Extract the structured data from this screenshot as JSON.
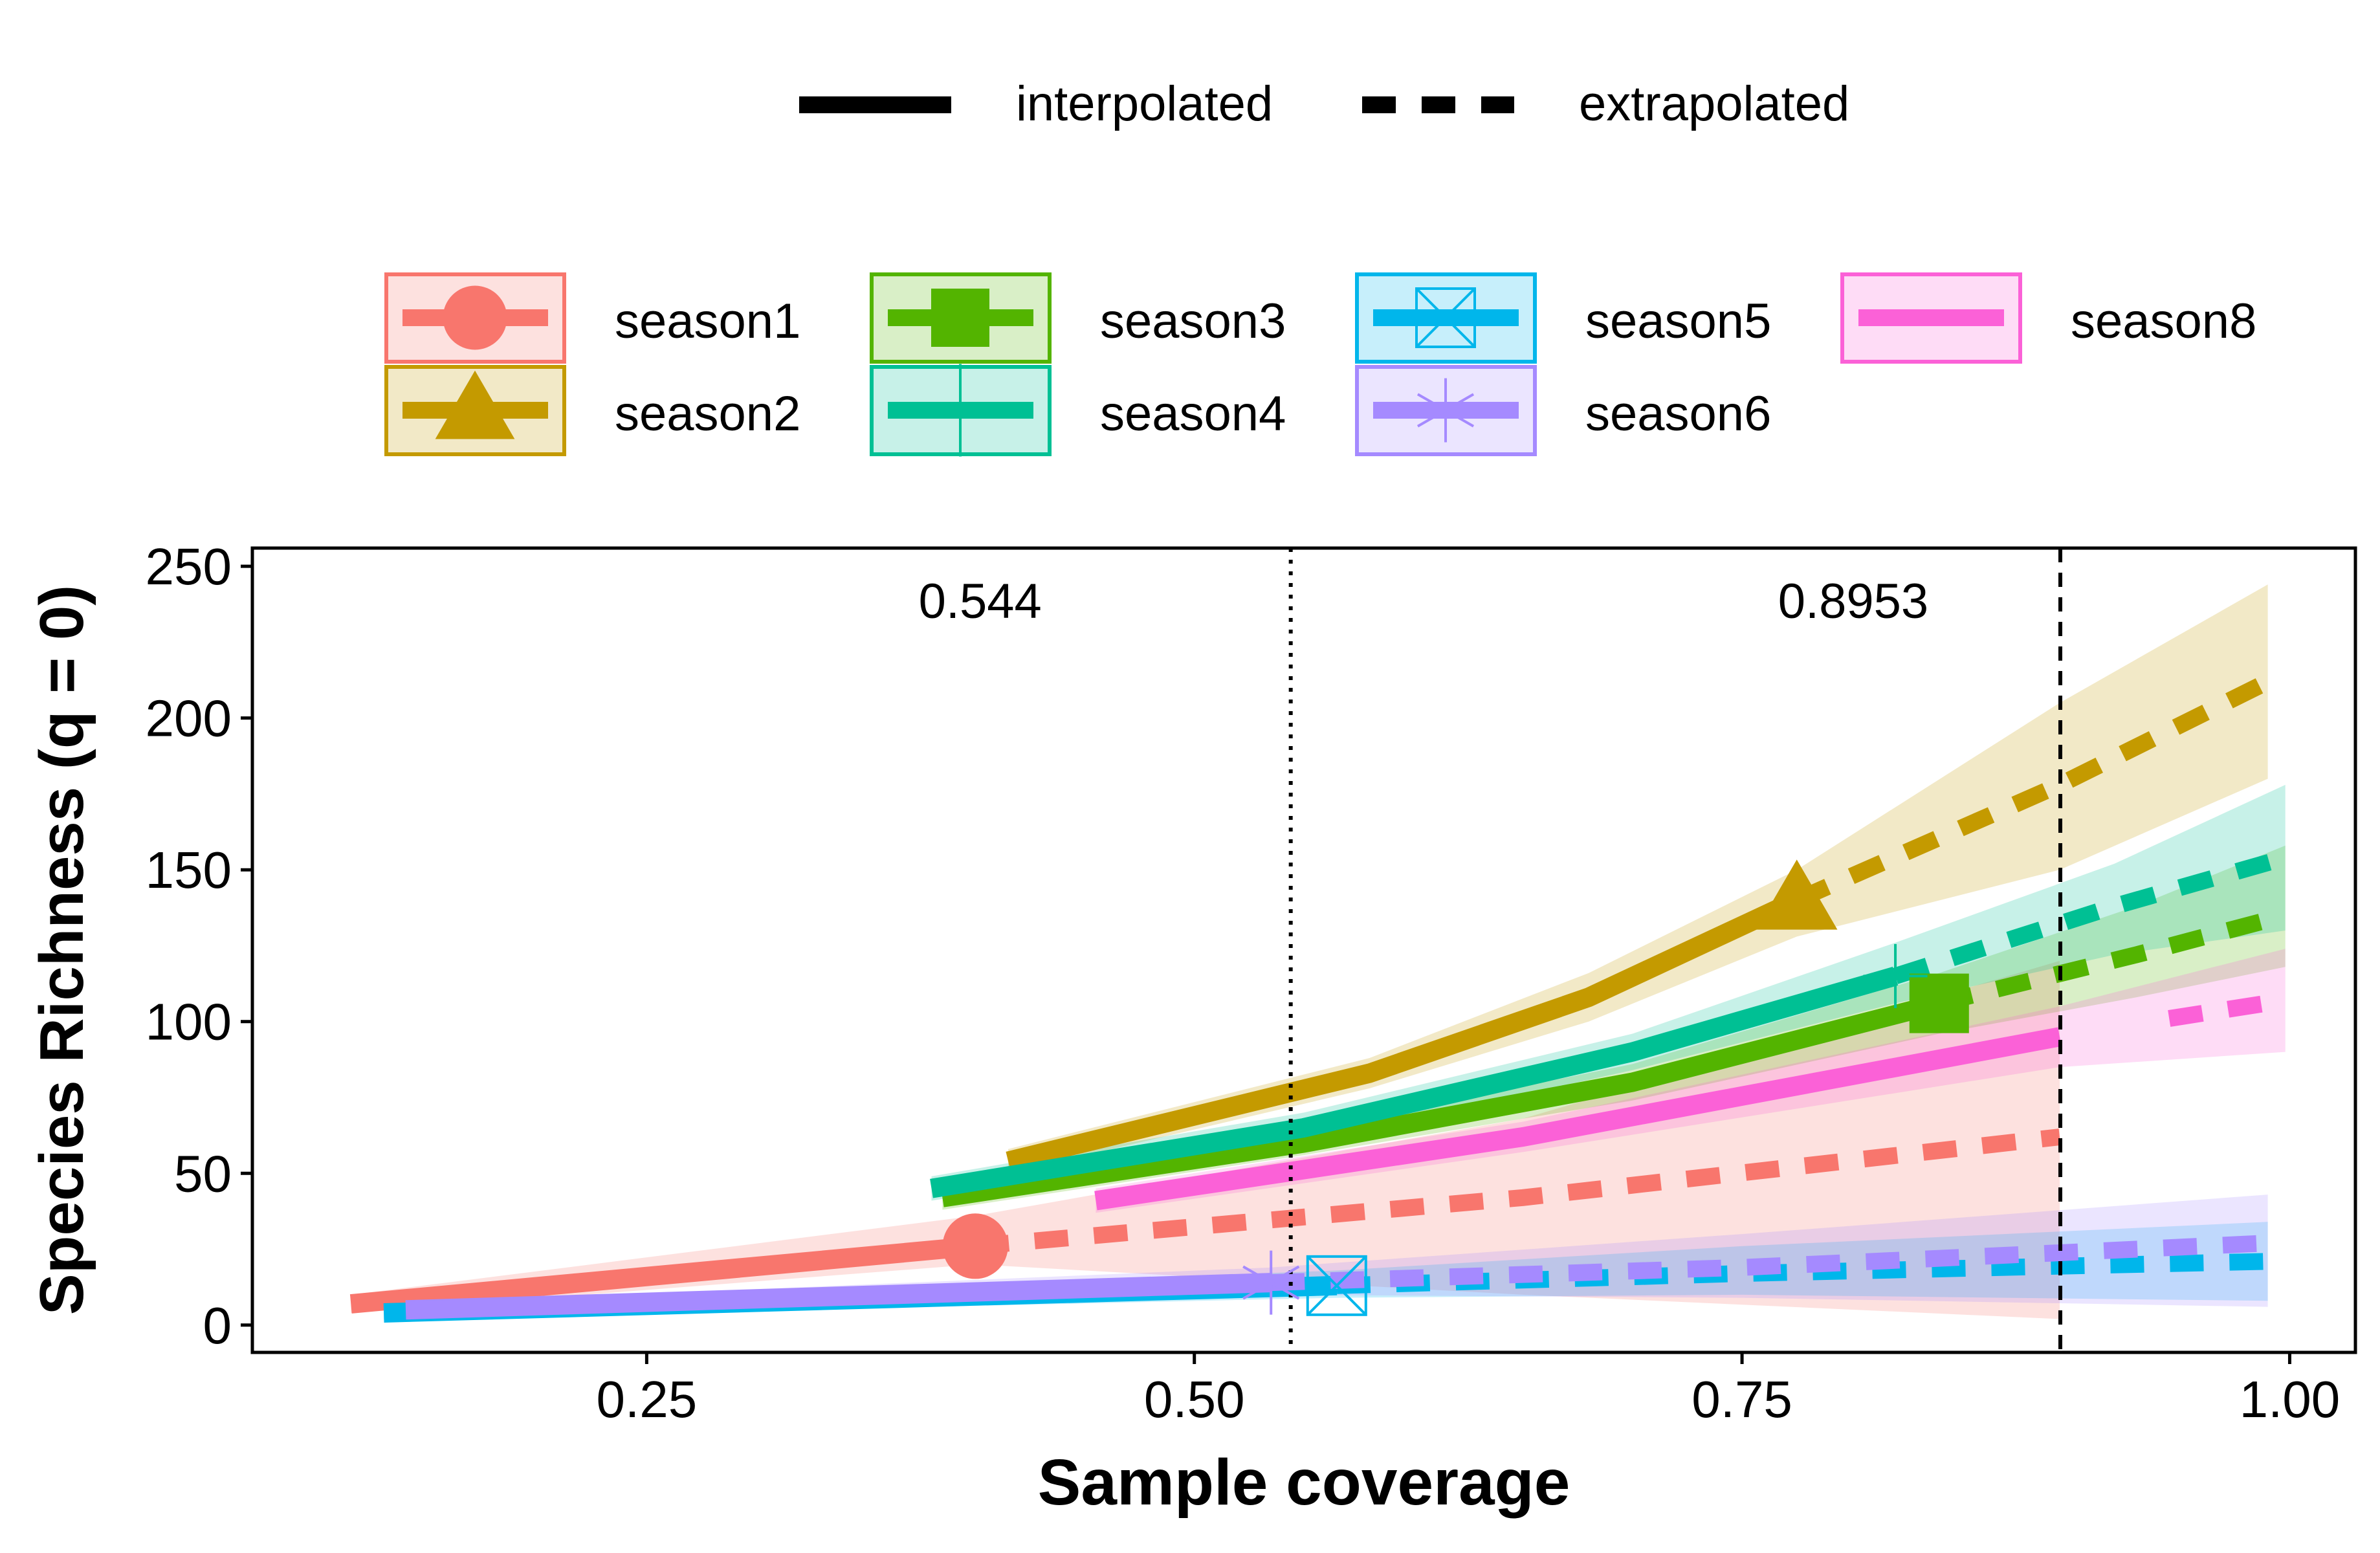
{
  "chart_data": {
    "type": "line",
    "xlabel": "Sample coverage",
    "ylabel": "Species Richness (q = 0)",
    "xlim": [
      0.07,
      1.03
    ],
    "ylim": [
      -9,
      256
    ],
    "x_ticks": [
      0.25,
      0.5,
      0.75,
      1.0
    ],
    "x_tick_labels": [
      "0.25",
      "0.50",
      "0.75",
      "1.00"
    ],
    "y_ticks": [
      0,
      50,
      100,
      150,
      200,
      250
    ],
    "y_tick_labels": [
      "0",
      "50",
      "100",
      "150",
      "200",
      "250"
    ],
    "grid": false,
    "legend_position": "top",
    "line_type_legend": [
      {
        "label": "interpolated",
        "dash": "solid"
      },
      {
        "label": "extrapolated",
        "dash": "dashed"
      }
    ],
    "reference_lines": [
      {
        "x": 0.544,
        "label": "0.544",
        "style": "dotted"
      },
      {
        "x": 0.8953,
        "label": "0.8953",
        "style": "dashed"
      }
    ],
    "series": [
      {
        "name": "season1",
        "color": "#F8766D",
        "marker": "circle",
        "interpolated": [
          [
            0.115,
            7
          ],
          [
            0.4,
            26
          ]
        ],
        "extrapolated": [
          [
            0.4,
            26
          ],
          [
            0.65,
            42
          ],
          [
            0.895,
            62
          ]
        ],
        "observed": [
          0.4,
          26
        ],
        "ci_lower": [
          [
            0.115,
            4
          ],
          [
            0.4,
            20
          ],
          [
            0.65,
            10
          ],
          [
            0.895,
            2
          ]
        ],
        "ci_upper": [
          [
            0.115,
            10
          ],
          [
            0.4,
            36
          ],
          [
            0.65,
            68
          ],
          [
            0.895,
            120
          ]
        ]
      },
      {
        "name": "season2",
        "color": "#C49A00",
        "marker": "triangle",
        "interpolated": [
          [
            0.415,
            54
          ],
          [
            0.58,
            83
          ],
          [
            0.68,
            108
          ],
          [
            0.775,
            140
          ]
        ],
        "extrapolated": [
          [
            0.775,
            140
          ],
          [
            0.895,
            178
          ],
          [
            0.99,
            212
          ]
        ],
        "observed": [
          0.775,
          140
        ],
        "ci_lower": [
          [
            0.415,
            50
          ],
          [
            0.58,
            78
          ],
          [
            0.68,
            100
          ],
          [
            0.775,
            128
          ],
          [
            0.895,
            150
          ],
          [
            0.99,
            180
          ]
        ],
        "ci_upper": [
          [
            0.415,
            58
          ],
          [
            0.58,
            88
          ],
          [
            0.68,
            116
          ],
          [
            0.775,
            150
          ],
          [
            0.895,
            205
          ],
          [
            0.99,
            244
          ]
        ]
      },
      {
        "name": "season3",
        "color": "#53B400",
        "marker": "square",
        "interpolated": [
          [
            0.385,
            42
          ],
          [
            0.55,
            60
          ],
          [
            0.7,
            80
          ],
          [
            0.84,
            106
          ]
        ],
        "extrapolated": [
          [
            0.84,
            106
          ],
          [
            0.93,
            122
          ],
          [
            0.998,
            135
          ]
        ],
        "observed": [
          0.84,
          106
        ],
        "ci_lower": [
          [
            0.385,
            38
          ],
          [
            0.55,
            56
          ],
          [
            0.7,
            74
          ],
          [
            0.84,
            96
          ],
          [
            0.93,
            108
          ],
          [
            0.998,
            118
          ]
        ],
        "ci_upper": [
          [
            0.385,
            46
          ],
          [
            0.55,
            64
          ],
          [
            0.7,
            86
          ],
          [
            0.84,
            116
          ],
          [
            0.93,
            138
          ],
          [
            0.998,
            158
          ]
        ]
      },
      {
        "name": "season4",
        "color": "#00C094",
        "marker": "plus",
        "interpolated": [
          [
            0.38,
            45
          ],
          [
            0.55,
            65
          ],
          [
            0.7,
            90
          ],
          [
            0.82,
            115
          ]
        ],
        "extrapolated": [
          [
            0.82,
            115
          ],
          [
            0.92,
            138
          ],
          [
            0.998,
            154
          ]
        ],
        "observed": [
          0.82,
          115
        ],
        "ci_lower": [
          [
            0.38,
            41
          ],
          [
            0.55,
            60
          ],
          [
            0.7,
            84
          ],
          [
            0.82,
            106
          ],
          [
            0.92,
            122
          ],
          [
            0.998,
            130
          ]
        ],
        "ci_upper": [
          [
            0.38,
            49
          ],
          [
            0.55,
            70
          ],
          [
            0.7,
            96
          ],
          [
            0.82,
            126
          ],
          [
            0.92,
            152
          ],
          [
            0.998,
            178
          ]
        ]
      },
      {
        "name": "season5",
        "color": "#00B6EB",
        "marker": "box-x",
        "interpolated": [
          [
            0.13,
            4
          ],
          [
            0.565,
            13
          ]
        ],
        "extrapolated": [
          [
            0.565,
            13
          ],
          [
            0.75,
            17
          ],
          [
            0.99,
            21
          ]
        ],
        "observed": [
          0.565,
          13
        ],
        "ci_lower": [
          [
            0.13,
            2
          ],
          [
            0.565,
            9
          ],
          [
            0.75,
            10
          ],
          [
            0.99,
            8
          ]
        ],
        "ci_upper": [
          [
            0.13,
            6
          ],
          [
            0.565,
            18
          ],
          [
            0.75,
            26
          ],
          [
            0.99,
            34
          ]
        ]
      },
      {
        "name": "season6",
        "color": "#A58AFF",
        "marker": "asterisk",
        "interpolated": [
          [
            0.14,
            5
          ],
          [
            0.535,
            14
          ]
        ],
        "extrapolated": [
          [
            0.535,
            14
          ],
          [
            0.75,
            19
          ],
          [
            0.99,
            27
          ]
        ],
        "observed": [
          0.535,
          14
        ],
        "ci_lower": [
          [
            0.14,
            3
          ],
          [
            0.535,
            10
          ],
          [
            0.75,
            9
          ],
          [
            0.99,
            6
          ]
        ],
        "ci_upper": [
          [
            0.14,
            7
          ],
          [
            0.535,
            19
          ],
          [
            0.75,
            30
          ],
          [
            0.99,
            43
          ]
        ]
      },
      {
        "name": "season8",
        "color": "#FB61D7",
        "marker": "none",
        "interpolated": [
          [
            0.455,
            41
          ],
          [
            0.65,
            62
          ],
          [
            0.895,
            95
          ]
        ],
        "extrapolated": [
          [
            0.945,
            101
          ],
          [
            0.998,
            107
          ]
        ],
        "observed": null,
        "ci_lower": [
          [
            0.455,
            37
          ],
          [
            0.65,
            57
          ],
          [
            0.895,
            85
          ],
          [
            0.998,
            90
          ]
        ],
        "ci_upper": [
          [
            0.455,
            45
          ],
          [
            0.65,
            67
          ],
          [
            0.895,
            105
          ],
          [
            0.998,
            124
          ]
        ]
      }
    ]
  }
}
